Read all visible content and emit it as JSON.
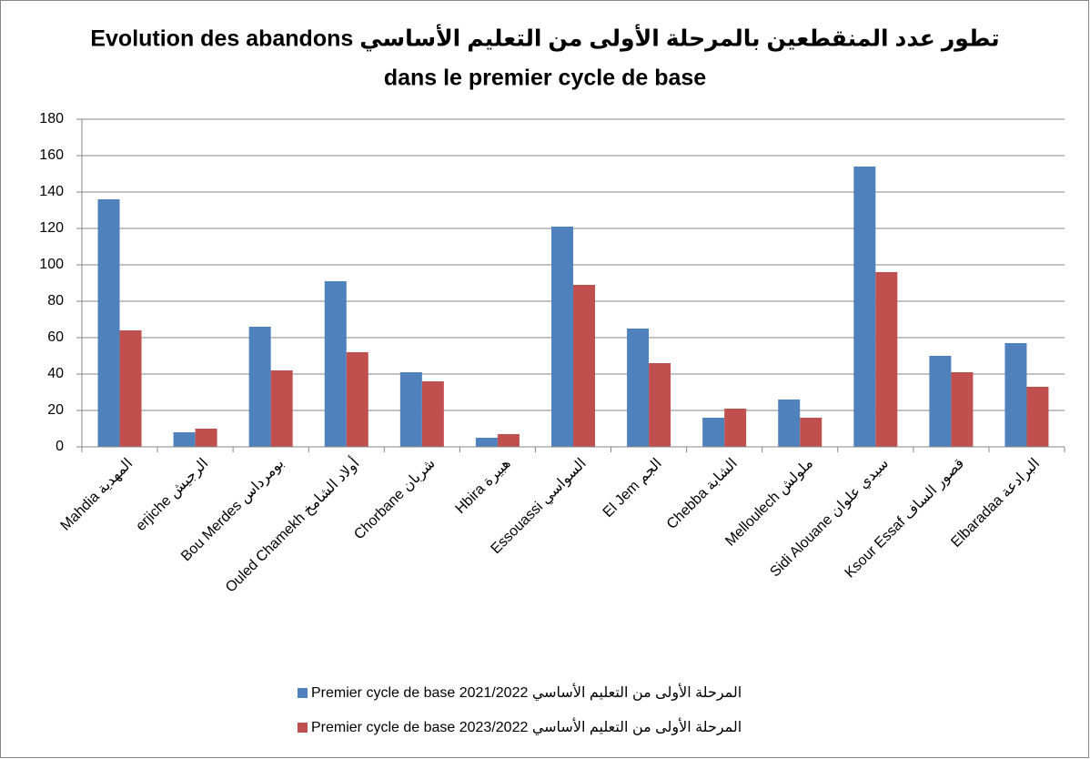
{
  "chart_data": {
    "type": "bar",
    "title": [
      "Evolution des abandons  تطور عدد المنقطعين بالمرحلة الأولى من التعليم الأساسي",
      "dans le premier cycle de base"
    ],
    "categories": [
      "Mahdia المهدية",
      "erjiche الرجيش",
      "Bou Merdes بومرداس",
      "Ouled Chamekh أولاد الشامخ",
      "Chorbane شربان",
      "Hbira هبيرة",
      "Essouassi السواسي",
      "El Jem الجم",
      "Chebba الشابة",
      "Melloulech ملولش",
      "Sidi Alouane سيدي علوان",
      "Ksour Essaf قصور الساف",
      "Elbaradaa البرادعة"
    ],
    "series": [
      {
        "name": "Premier cycle de base 2021/2022 المرحلة الأولى من التعليم الأساسي",
        "color": "#4f81bd",
        "values": [
          136,
          8,
          66,
          91,
          41,
          5,
          121,
          65,
          16,
          26,
          154,
          50,
          57
        ]
      },
      {
        "name": "Premier cycle de base 2023/2022 المرحلة الأولى من التعليم الأساسي",
        "color": "#c0504d",
        "values": [
          64,
          10,
          42,
          52,
          36,
          7,
          89,
          46,
          21,
          16,
          96,
          41,
          33
        ]
      }
    ],
    "ylim": [
      0,
      180
    ],
    "yticks": [
      0,
      20,
      40,
      60,
      80,
      100,
      120,
      140,
      160,
      180
    ],
    "grid": true,
    "legend": "bottom"
  }
}
